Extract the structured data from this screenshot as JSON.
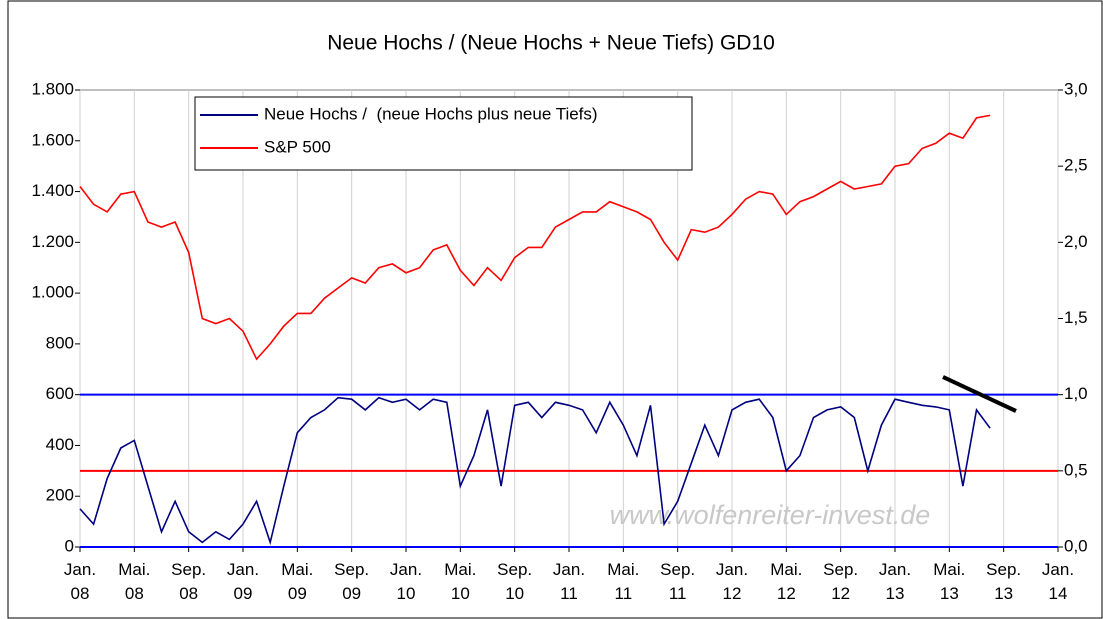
{
  "chart_data": {
    "type": "line",
    "title": "Neue Hochs / (Neue Hochs + Neue Tiefs) GD10",
    "watermark": "www.wolfenreiter-invest.de",
    "x": [
      "2008-01",
      "2008-02",
      "2008-03",
      "2008-04",
      "2008-05",
      "2008-06",
      "2008-07",
      "2008-08",
      "2008-09",
      "2008-10",
      "2008-11",
      "2008-12",
      "2009-01",
      "2009-02",
      "2009-03",
      "2009-04",
      "2009-05",
      "2009-06",
      "2009-07",
      "2009-08",
      "2009-09",
      "2009-10",
      "2009-11",
      "2009-12",
      "2010-01",
      "2010-02",
      "2010-03",
      "2010-04",
      "2010-05",
      "2010-06",
      "2010-07",
      "2010-08",
      "2010-09",
      "2010-10",
      "2010-11",
      "2010-12",
      "2011-01",
      "2011-02",
      "2011-03",
      "2011-04",
      "2011-05",
      "2011-06",
      "2011-07",
      "2011-08",
      "2011-09",
      "2011-10",
      "2011-11",
      "2011-12",
      "2012-01",
      "2012-02",
      "2012-03",
      "2012-04",
      "2012-05",
      "2012-06",
      "2012-07",
      "2012-08",
      "2012-09",
      "2012-10",
      "2012-11",
      "2012-12",
      "2013-01",
      "2013-02",
      "2013-03",
      "2013-04",
      "2013-05",
      "2013-06",
      "2013-07",
      "2013-08"
    ],
    "series": [
      {
        "name": "Neue Hochs /  (neue Hochs plus neue Tiefs)",
        "color": "#000080",
        "axis": "y2",
        "values": [
          0.25,
          0.15,
          0.45,
          0.65,
          0.7,
          0.4,
          0.1,
          0.3,
          0.1,
          0.03,
          0.1,
          0.05,
          0.15,
          0.3,
          0.03,
          0.4,
          0.75,
          0.85,
          0.9,
          0.98,
          0.97,
          0.9,
          0.98,
          0.95,
          0.97,
          0.9,
          0.97,
          0.95,
          0.4,
          0.6,
          0.9,
          0.4,
          0.93,
          0.95,
          0.85,
          0.95,
          0.93,
          0.9,
          0.75,
          0.95,
          0.8,
          0.6,
          0.93,
          0.15,
          0.3,
          0.55,
          0.8,
          0.6,
          0.9,
          0.95,
          0.97,
          0.85,
          0.5,
          0.6,
          0.85,
          0.9,
          0.92,
          0.85,
          0.5,
          0.8,
          0.97,
          0.95,
          0.93,
          0.92,
          0.9,
          0.4,
          0.9,
          0.78
        ]
      },
      {
        "name": "S&P 500",
        "color": "#ff0000",
        "values": [
          1420,
          1350,
          1320,
          1390,
          1400,
          1280,
          1260,
          1280,
          1160,
          900,
          880,
          900,
          850,
          740,
          800,
          870,
          920,
          920,
          980,
          1020,
          1060,
          1040,
          1100,
          1115,
          1080,
          1100,
          1170,
          1190,
          1090,
          1030,
          1100,
          1050,
          1140,
          1180,
          1180,
          1260,
          1290,
          1320,
          1320,
          1360,
          1340,
          1320,
          1290,
          1200,
          1130,
          1250,
          1240,
          1260,
          1310,
          1370,
          1400,
          1390,
          1310,
          1360,
          1380,
          1410,
          1440,
          1410,
          1420,
          1430,
          1500,
          1510,
          1570,
          1590,
          1630,
          1610,
          1690,
          1700
        ]
      }
    ],
    "ylim": [
      0,
      1800
    ],
    "yticks": [
      0,
      {
        "value": 200,
        "label": "200"
      },
      {
        "value": 400,
        "label": "400"
      },
      {
        "value": 600,
        "label": "600"
      },
      {
        "value": 800,
        "label": "800"
      },
      {
        "value": 1000,
        "label": "1.000"
      },
      {
        "value": 1200,
        "label": "1.200"
      },
      {
        "value": 1400,
        "label": "1.400"
      },
      {
        "value": 1600,
        "label": "1.600"
      },
      {
        "value": 1800,
        "label": "1.800"
      }
    ],
    "y2lim": [
      0,
      3
    ],
    "y2ticks": [
      {
        "value": 0,
        "label": "0,0"
      },
      {
        "value": 0.5,
        "label": "0,5"
      },
      {
        "value": 1,
        "label": "1,0"
      },
      {
        "value": 1.5,
        "label": "1,5"
      },
      {
        "value": 2,
        "label": "2,0"
      },
      {
        "value": 2.5,
        "label": "2,5"
      },
      {
        "value": 3,
        "label": "3,0"
      }
    ],
    "xlim": [
      "2008-01",
      "2014-01"
    ],
    "xticks": [
      {
        "value": "2008-01",
        "label": "Jan. 08"
      },
      {
        "value": "2008-05",
        "label": "Mai. 08"
      },
      {
        "value": "2008-09",
        "label": "Sep. 08"
      },
      {
        "value": "2009-01",
        "label": "Jan. 09"
      },
      {
        "value": "2009-05",
        "label": "Mai. 09"
      },
      {
        "value": "2009-09",
        "label": "Sep. 09"
      },
      {
        "value": "2010-01",
        "label": "Jan. 10"
      },
      {
        "value": "2010-05",
        "label": "Mai. 10"
      },
      {
        "value": "2010-09",
        "label": "Sep. 10"
      },
      {
        "value": "2011-01",
        "label": "Jan. 11"
      },
      {
        "value": "2011-05",
        "label": "Mai. 11"
      },
      {
        "value": "2011-09",
        "label": "Sep. 11"
      },
      {
        "value": "2012-01",
        "label": "Jan. 12"
      },
      {
        "value": "2012-05",
        "label": "Mai. 12"
      },
      {
        "value": "2012-09",
        "label": "Sep. 12"
      },
      {
        "value": "2013-01",
        "label": "Jan. 13"
      },
      {
        "value": "2013-05",
        "label": "Mai. 13"
      },
      {
        "value": "2013-09",
        "label": "Sep. 13"
      },
      {
        "value": "2014-01",
        "label": "Jan. 14"
      }
    ],
    "reference_lines": [
      {
        "axis": "y2",
        "value": 1,
        "color": "#0000ff"
      },
      {
        "axis": "y2",
        "value": 0.5,
        "color": "#ff0000"
      },
      {
        "axis": "y2",
        "value": 0,
        "color": "#0000ff"
      }
    ],
    "grid": "x"
  }
}
